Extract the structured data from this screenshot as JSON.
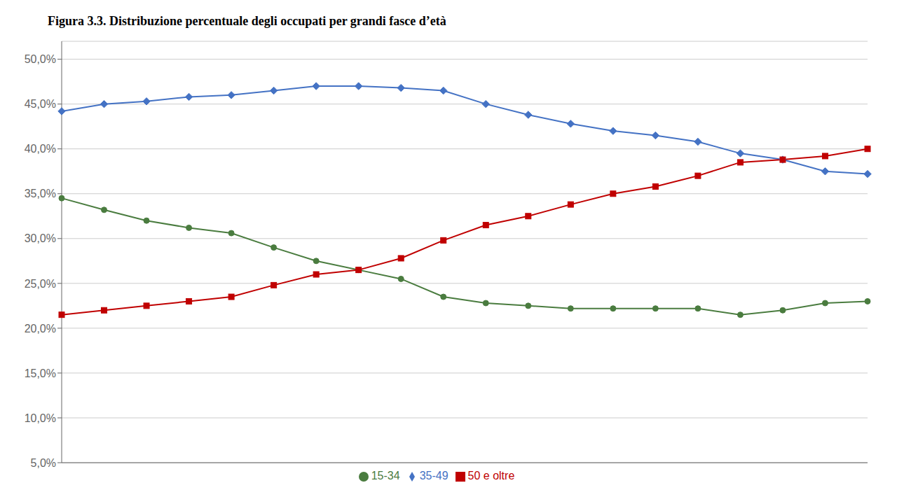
{
  "chart_data": {
    "type": "line",
    "title": "Figura 3.3. Distribuzione percentuale degli occupati per grandi fasce d’età",
    "categories": [
      null,
      null,
      null,
      null,
      null,
      null,
      null,
      null,
      null,
      null,
      null,
      null,
      null,
      null,
      null,
      null,
      null,
      null,
      null,
      null
    ],
    "series": [
      {
        "name": "15-34",
        "color": "#4a7c3f",
        "marker": "circle",
        "values": [
          34.5,
          33.2,
          32.0,
          31.2,
          30.6,
          29.0,
          27.5,
          26.5,
          25.5,
          23.5,
          22.8,
          22.5,
          22.2,
          22.2,
          22.2,
          22.2,
          21.5,
          22.0,
          22.8,
          23.0
        ]
      },
      {
        "name": "35-49",
        "color": "#4472c4",
        "marker": "diamond",
        "values": [
          44.2,
          45.0,
          45.3,
          45.8,
          46.0,
          46.5,
          47.0,
          47.0,
          46.8,
          46.5,
          45.0,
          43.8,
          42.8,
          42.0,
          41.5,
          40.8,
          39.5,
          38.8,
          37.5,
          37.2
        ]
      },
      {
        "name": "50 e oltre",
        "color": "#c00000",
        "marker": "square",
        "values": [
          21.5,
          22.0,
          22.5,
          23.0,
          23.5,
          24.8,
          26.0,
          26.5,
          27.8,
          29.8,
          31.5,
          32.5,
          33.8,
          35.0,
          35.8,
          37.0,
          38.5,
          38.8,
          39.2,
          40.0
        ]
      }
    ],
    "ylim": [
      5.0,
      52.0
    ],
    "yticks": [
      {
        "value": 5.0,
        "label": "5,0%"
      },
      {
        "value": 10.0,
        "label": "10,0%"
      },
      {
        "value": 15.0,
        "label": "15,0%"
      },
      {
        "value": 20.0,
        "label": "20,0%"
      },
      {
        "value": 25.0,
        "label": "25,0%"
      },
      {
        "value": 30.0,
        "label": "30,0%"
      },
      {
        "value": 35.0,
        "label": "35,0%"
      },
      {
        "value": 40.0,
        "label": "40,0%"
      },
      {
        "value": 45.0,
        "label": "45,0%"
      },
      {
        "value": 50.0,
        "label": "50,0%"
      }
    ],
    "grid": true,
    "legend": "bottom",
    "tick_labels": "y"
  }
}
